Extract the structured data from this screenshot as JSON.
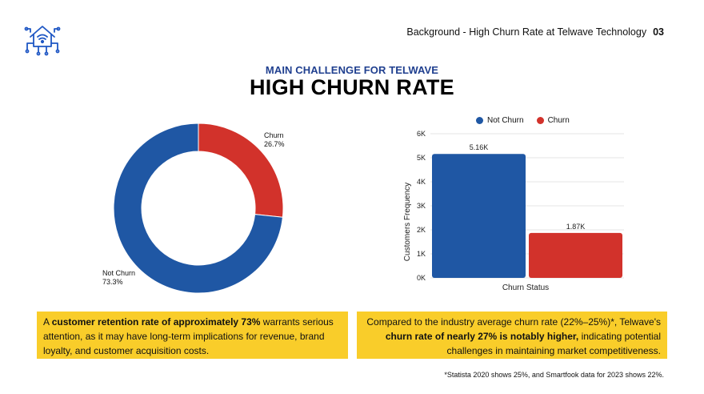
{
  "header": {
    "section_title": "Background - High Churn Rate at Telwave Technology",
    "page_number": "03"
  },
  "hero": {
    "subtitle": "MAIN CHALLENGE FOR TELWAVE",
    "title": "HIGH CHURN RATE"
  },
  "colors": {
    "not_churn": "#1f57a4",
    "churn": "#d2322b",
    "highlight": "#f9cd2a",
    "subtitle": "#1f3f8f"
  },
  "chart_data": [
    {
      "type": "pie",
      "variant": "donut",
      "slices": [
        {
          "label": "Churn",
          "percent_label": "26.7%",
          "value": 26.7
        },
        {
          "label": "Not Churn",
          "percent_label": "73.3%",
          "value": 73.3
        }
      ]
    },
    {
      "type": "bar",
      "categories": [
        "Not Churn",
        "Churn"
      ],
      "values": [
        5160,
        1870
      ],
      "data_labels": [
        "5.16K",
        "1.87K"
      ],
      "xlabel": "Churn Status",
      "ylabel": "Customers Frequency",
      "ylim": [
        0,
        6000
      ],
      "yticks": [
        "0K",
        "1K",
        "2K",
        "3K",
        "4K",
        "5K",
        "6K"
      ],
      "legend": {
        "position": "top",
        "entries": [
          "Not Churn",
          "Churn"
        ]
      },
      "grid": true
    }
  ],
  "insights": {
    "left": {
      "lead": "A ",
      "bold": "customer retention rate of approximately 73%",
      "rest": " warrants serious attention, as it may have long-term implications for revenue, brand loyalty, and customer acquisition costs."
    },
    "right": {
      "lead": "Compared to the industry average churn rate (22%–25%)*, Telwave's ",
      "bold": "churn rate of nearly 27% is notably higher,",
      "rest": " indicating potential challenges in maintaining market competitiveness."
    }
  },
  "footnote": "*Statista 2020 shows 25%, and Smartfook data for 2023 shows 22%."
}
